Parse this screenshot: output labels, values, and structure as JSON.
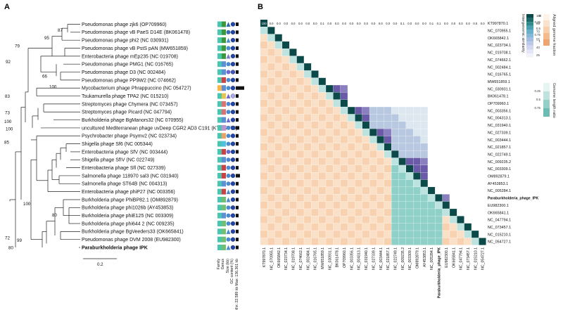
{
  "panel_a_label": "A",
  "panel_b_label": "B",
  "tree": {
    "leaves": [
      "Pseudomonas phage zjk6 (OP709960)",
      "Pseudomonas phage vB PaeS D14E (BK061478)",
      "Pseudomonas phage phi2 (NC 030931)",
      "Pseudomonas phage vB PstS pAN (MW651859)",
      "Enterobacteria phage mEp235 (NC 019708)",
      "Pseudomonas phage PMG1 (NC 016765)",
      "Pseudomonas phage D3 (NC 002484)",
      "Pseudomonas phage PP9W2 (NC 074662)",
      "Mycobacterium phage Phrappuccino (NC 054727)",
      "Tsukamurella phage TPA2 (NC 015210)",
      "Streptomyces phage Chymera (NC 073457)",
      "Streptomyces phage Picard (NC 047794)",
      "Burkholderia phage BgManors32 (NC 070955)",
      "uncultured Mediterranean phage uvDeep CGR2 AD3 C191 (KT997870)",
      "Psychrobacter phage Psymv2 (NC 023734)",
      "Shigella phage Sf6 (NC 005344)",
      "Enterobacteria phage SfV (NC 003444)",
      "Shigella phage SfIV (NC 022749)",
      "Enterobacteria phage Sfl (NC 027339)",
      "Salmonella phage 118970 sal3 (NC 031940)",
      "Salmonella phage ST64B (NC 004313)",
      "Enterobacteria phage phiP27 (NC 003356)",
      "Burkholderia phage PhiBP82.1 (OM892879)",
      "Burkholderia phage phi1026b (AY453853)",
      "Burkholderia phage phiE125 (NC 003309)",
      "Burkholderia phage phi644 2 (NC 009235)",
      "Burkholderia phage BgVeeders33 (OK665841)",
      "Pseudomonas phage DVM 2008 (EU982300)",
      "Paraburkholderia phage IPK"
    ],
    "bootstrap": [
      "87",
      "95",
      "79",
      "92",
      "66",
      "100",
      "83",
      "73",
      "100",
      "100",
      "85",
      "100",
      "80",
      "72",
      "99",
      "80"
    ],
    "scale_label": "0.2",
    "annotation_columns": [
      "Family",
      "Genus",
      "Size (kb)",
      "GC content (%)",
      "Min: 22.589 kb  Max: 136.361 kb"
    ]
  },
  "heatmap": {
    "row_labels": [
      "KT997870.1",
      "NC_070955.1",
      "OK665842.1",
      "NC_023734.1",
      "NC_019708.1",
      "NC_074662.1",
      "NC_002484.1",
      "NC_016765.1",
      "MW651859.1",
      "NC_030931.1",
      "BK061478.1",
      "OP709960.1",
      "NC_003356.1",
      "NC_004313.1",
      "NC_031940.1",
      "NC_027339.1",
      "NC_003444.1",
      "NC_021857.1",
      "NC_022749.1",
      "NC_009235.2",
      "NC_003309.1",
      "OM892879.1",
      "AY453853.1",
      "NC_005284.1",
      "Paraburkholderia_phage_IPK",
      "EU982300.1",
      "OK665841.1",
      "NC_047794.1",
      "NC_073457.1",
      "NC_015210.1",
      "NC_054727.1"
    ],
    "col_labels": [
      "KT997870.1",
      "NC_070955.1",
      "OK665842.1",
      "NC_023734.1",
      "NC_019708.1",
      "NC_074662.1",
      "NC_002484.1",
      "NC_016765.1",
      "MW651859.1",
      "NC_030931.1",
      "BK061478.1",
      "OP709960.1",
      "NC_003356.1",
      "NC_004313.1",
      "NC_031940.1",
      "NC_027339.1",
      "NC_003444.1",
      "NC_021857.1",
      "NC_022749.1",
      "NC_009235.2",
      "NC_003309.1",
      "OM892879.1",
      "AY453853.1",
      "NC_005284.1",
      "Paraburkholderia_phage_IPK",
      "EU982300.1",
      "OK665841.1",
      "NC_047794.1",
      "NC_073457.1",
      "NC_015210.1",
      "NC_054727.1"
    ],
    "bold_label": "Paraburkholderia_phage_IPK",
    "legend_identity": {
      "title": "Intergenomic similarity",
      "ticks": [
        "100",
        "92.65",
        "85",
        "77.5",
        "70",
        "62.5",
        "55",
        "47.5",
        "40",
        "32.5",
        "25",
        "17.5"
      ]
    },
    "legend_aligned": {
      "title": "Aligned genome fraction",
      "ticks": [
        "0",
        "0.25",
        "0.5",
        "0.75",
        "1"
      ]
    },
    "legend_ratio": {
      "title": "Genome length ratio",
      "ticks": [
        "0.25",
        "0.5",
        "0.75"
      ]
    },
    "colors": {
      "diag": "#0c4a4a",
      "high": "#5a4f9c",
      "mid": "#7fb4cf",
      "low_ident": "#ffffff",
      "aligned": "#f6c8a0",
      "ratio": "#9ed0cd"
    },
    "top_row": [
      "100",
      "0.0",
      "0.0",
      "0.0",
      "0.0",
      "0.0",
      "0.0",
      "0.0",
      "0.1",
      "0.0",
      "0.0",
      "0.0",
      "0.0",
      "0.0",
      "0.0",
      "0.0",
      "0.0",
      "0.0",
      "0.0",
      "0.1",
      "0.0",
      "0.0",
      "0.0",
      "0.1",
      "0.1",
      "0.0",
      "0.0",
      "0.0",
      "0.0",
      "0.0",
      "0.0"
    ]
  }
}
